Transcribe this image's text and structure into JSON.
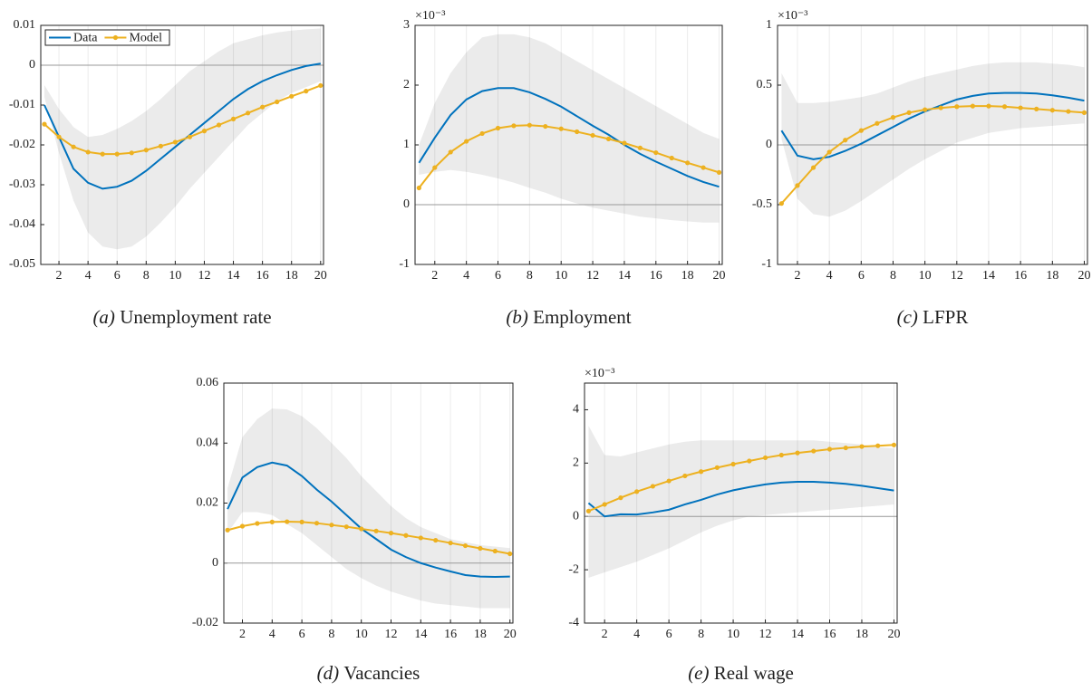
{
  "chart_data": [
    {
      "type": "line",
      "caption_tag": "(a)",
      "caption": "Unemployment rate",
      "x": [
        1,
        2,
        3,
        4,
        5,
        6,
        7,
        8,
        9,
        10,
        11,
        12,
        13,
        14,
        15,
        16,
        17,
        18,
        19,
        20
      ],
      "xlim": [
        0.75,
        20.2
      ],
      "xticks": [
        2,
        4,
        6,
        8,
        10,
        12,
        14,
        16,
        18,
        20
      ],
      "ylim": [
        -0.05,
        0.01
      ],
      "yticks": [
        -0.05,
        -0.04,
        -0.03,
        -0.02,
        -0.01,
        0,
        0.01
      ],
      "grid": true,
      "zero_line": true,
      "legend": "upper left",
      "band": {
        "color": "#ebebeb",
        "lower": [
          -0.008,
          -0.022,
          -0.034,
          -0.042,
          -0.0455,
          -0.0462,
          -0.0455,
          -0.043,
          -0.0395,
          -0.0355,
          -0.031,
          -0.027,
          -0.023,
          -0.019,
          -0.015,
          -0.012,
          -0.009,
          -0.007,
          -0.0055,
          -0.004
        ],
        "upper": [
          -0.005,
          -0.011,
          -0.0155,
          -0.018,
          -0.0175,
          -0.016,
          -0.014,
          -0.0115,
          -0.0085,
          -0.005,
          -0.0015,
          0.001,
          0.0035,
          0.0055,
          0.0065,
          0.0075,
          0.0082,
          0.0087,
          0.009,
          0.0092
        ]
      },
      "series": [
        {
          "name": "Data",
          "color": "#0072BD",
          "marker": false,
          "values": [
            -0.01,
            -0.018,
            -0.026,
            -0.0295,
            -0.031,
            -0.0305,
            -0.029,
            -0.0265,
            -0.0235,
            -0.0205,
            -0.0175,
            -0.0145,
            -0.0115,
            -0.0085,
            -0.006,
            -0.004,
            -0.0025,
            -0.0012,
            -0.0002,
            0.0004
          ]
        },
        {
          "name": "Model",
          "color": "#EDB120",
          "marker": true,
          "values": [
            -0.0148,
            -0.018,
            -0.0205,
            -0.0218,
            -0.0223,
            -0.0223,
            -0.022,
            -0.0213,
            -0.0203,
            -0.0193,
            -0.018,
            -0.0165,
            -0.015,
            -0.0135,
            -0.012,
            -0.0105,
            -0.0092,
            -0.0078,
            -0.0065,
            -0.0051
          ]
        }
      ]
    },
    {
      "type": "line",
      "caption_tag": "(b)",
      "caption": "Employment",
      "y_exponent_label": "×10⁻³",
      "x": [
        1,
        2,
        3,
        4,
        5,
        6,
        7,
        8,
        9,
        10,
        11,
        12,
        13,
        14,
        15,
        16,
        17,
        18,
        19,
        20
      ],
      "xlim": [
        0.75,
        20.2
      ],
      "xticks": [
        2,
        4,
        6,
        8,
        10,
        12,
        14,
        16,
        18,
        20
      ],
      "ylim": [
        -1,
        3
      ],
      "yticks": [
        -1,
        0,
        1,
        2,
        3
      ],
      "grid": true,
      "zero_line": true,
      "band": {
        "color": "#ebebeb",
        "lower": [
          0.5,
          0.55,
          0.58,
          0.55,
          0.5,
          0.44,
          0.37,
          0.28,
          0.2,
          0.1,
          0.02,
          -0.05,
          -0.1,
          -0.15,
          -0.2,
          -0.23,
          -0.26,
          -0.28,
          -0.3,
          -0.3
        ],
        "upper": [
          1.0,
          1.7,
          2.2,
          2.55,
          2.8,
          2.85,
          2.85,
          2.8,
          2.7,
          2.55,
          2.4,
          2.25,
          2.1,
          1.95,
          1.8,
          1.65,
          1.5,
          1.35,
          1.2,
          1.1
        ]
      },
      "series": [
        {
          "color": "#0072BD",
          "marker": false,
          "values": [
            0.7,
            1.12,
            1.5,
            1.76,
            1.9,
            1.95,
            1.95,
            1.88,
            1.77,
            1.64,
            1.48,
            1.32,
            1.17,
            1.0,
            0.85,
            0.72,
            0.6,
            0.48,
            0.38,
            0.3
          ]
        },
        {
          "color": "#EDB120",
          "marker": true,
          "values": [
            0.28,
            0.62,
            0.88,
            1.06,
            1.19,
            1.28,
            1.32,
            1.33,
            1.31,
            1.27,
            1.22,
            1.16,
            1.1,
            1.03,
            0.95,
            0.87,
            0.78,
            0.7,
            0.62,
            0.54
          ]
        }
      ]
    },
    {
      "type": "line",
      "caption_tag": "(c)",
      "caption": "LFPR",
      "y_exponent_label": "×10⁻³",
      "x": [
        1,
        2,
        3,
        4,
        5,
        6,
        7,
        8,
        9,
        10,
        11,
        12,
        13,
        14,
        15,
        16,
        17,
        18,
        19,
        20
      ],
      "xlim": [
        0.75,
        20.2
      ],
      "xticks": [
        2,
        4,
        6,
        8,
        10,
        12,
        14,
        16,
        18,
        20
      ],
      "ylim": [
        -1,
        1
      ],
      "yticks": [
        -1,
        -0.5,
        0,
        0.5,
        1
      ],
      "grid": true,
      "zero_line": true,
      "band": {
        "color": "#ebebeb",
        "lower": [
          0.05,
          -0.45,
          -0.58,
          -0.6,
          -0.55,
          -0.47,
          -0.38,
          -0.29,
          -0.2,
          -0.12,
          -0.05,
          0.02,
          0.06,
          0.1,
          0.12,
          0.14,
          0.15,
          0.16,
          0.17,
          0.18
        ],
        "upper": [
          0.6,
          0.35,
          0.35,
          0.36,
          0.38,
          0.4,
          0.43,
          0.48,
          0.53,
          0.57,
          0.6,
          0.63,
          0.66,
          0.68,
          0.69,
          0.69,
          0.69,
          0.68,
          0.67,
          0.65
        ]
      },
      "series": [
        {
          "color": "#0072BD",
          "marker": false,
          "values": [
            0.12,
            -0.09,
            -0.12,
            -0.1,
            -0.05,
            0.01,
            0.08,
            0.15,
            0.22,
            0.28,
            0.33,
            0.38,
            0.41,
            0.43,
            0.435,
            0.435,
            0.43,
            0.415,
            0.395,
            0.37
          ]
        },
        {
          "color": "#EDB120",
          "marker": true,
          "values": [
            -0.49,
            -0.34,
            -0.19,
            -0.06,
            0.04,
            0.12,
            0.18,
            0.23,
            0.27,
            0.295,
            0.31,
            0.32,
            0.325,
            0.325,
            0.32,
            0.31,
            0.3,
            0.29,
            0.28,
            0.27
          ]
        }
      ]
    },
    {
      "type": "line",
      "caption_tag": "(d)",
      "caption": "Vacancies",
      "x": [
        1,
        2,
        3,
        4,
        5,
        6,
        7,
        8,
        9,
        10,
        11,
        12,
        13,
        14,
        15,
        16,
        17,
        18,
        19,
        20
      ],
      "xlim": [
        0.75,
        20.2
      ],
      "xticks": [
        2,
        4,
        6,
        8,
        10,
        12,
        14,
        16,
        18,
        20
      ],
      "ylim": [
        -0.02,
        0.06
      ],
      "yticks": [
        -0.02,
        0,
        0.02,
        0.04,
        0.06
      ],
      "grid": true,
      "zero_line": true,
      "band": {
        "color": "#ebebeb",
        "lower": [
          0.01,
          0.017,
          0.017,
          0.016,
          0.013,
          0.01,
          0.006,
          0.002,
          -0.002,
          -0.005,
          -0.0075,
          -0.0095,
          -0.011,
          -0.0125,
          -0.0135,
          -0.014,
          -0.0145,
          -0.015,
          -0.015,
          -0.015
        ],
        "upper": [
          0.025,
          0.042,
          0.048,
          0.0515,
          0.0512,
          0.049,
          0.045,
          0.04,
          0.035,
          0.029,
          0.024,
          0.019,
          0.015,
          0.012,
          0.01,
          0.008,
          0.007,
          0.006,
          0.0055,
          0.005
        ]
      },
      "series": [
        {
          "color": "#0072BD",
          "marker": false,
          "values": [
            0.018,
            0.0285,
            0.032,
            0.0335,
            0.0325,
            0.029,
            0.0245,
            0.0205,
            0.016,
            0.0115,
            0.008,
            0.0045,
            0.002,
            0,
            -0.0015,
            -0.0028,
            -0.004,
            -0.0045,
            -0.0046,
            -0.0045
          ]
        },
        {
          "color": "#EDB120",
          "marker": true,
          "values": [
            0.011,
            0.0123,
            0.0132,
            0.0137,
            0.0138,
            0.0137,
            0.0133,
            0.0127,
            0.0121,
            0.0114,
            0.0107,
            0.01,
            0.0092,
            0.0084,
            0.0076,
            0.0067,
            0.0058,
            0.0049,
            0.004,
            0.0031
          ]
        }
      ]
    },
    {
      "type": "line",
      "caption_tag": "(e)",
      "caption": "Real wage",
      "y_exponent_label": "×10⁻³",
      "x": [
        1,
        2,
        3,
        4,
        5,
        6,
        7,
        8,
        9,
        10,
        11,
        12,
        13,
        14,
        15,
        16,
        17,
        18,
        19,
        20
      ],
      "xlim": [
        0.75,
        20.2
      ],
      "xticks": [
        2,
        4,
        6,
        8,
        10,
        12,
        14,
        16,
        18,
        20
      ],
      "ylim": [
        -4,
        5
      ],
      "yticks": [
        -4,
        -2,
        0,
        2,
        4
      ],
      "grid": true,
      "zero_line": true,
      "band": {
        "color": "#ebebeb",
        "lower": [
          -2.3,
          -2.1,
          -1.9,
          -1.7,
          -1.45,
          -1.2,
          -0.9,
          -0.6,
          -0.35,
          -0.15,
          0,
          0.05,
          0.1,
          0.15,
          0.2,
          0.25,
          0.3,
          0.35,
          0.4,
          0.45
        ],
        "upper": [
          3.4,
          2.3,
          2.25,
          2.4,
          2.55,
          2.7,
          2.8,
          2.85,
          2.85,
          2.85,
          2.85,
          2.85,
          2.85,
          2.85,
          2.85,
          2.8,
          2.75,
          2.7,
          2.6,
          2.55
        ]
      },
      "series": [
        {
          "color": "#0072BD",
          "marker": false,
          "values": [
            0.5,
            0.0,
            0.08,
            0.07,
            0.15,
            0.25,
            0.45,
            0.62,
            0.82,
            0.98,
            1.1,
            1.2,
            1.27,
            1.3,
            1.3,
            1.27,
            1.22,
            1.15,
            1.06,
            0.97
          ]
        },
        {
          "color": "#EDB120",
          "marker": true,
          "values": [
            0.2,
            0.45,
            0.7,
            0.93,
            1.13,
            1.33,
            1.52,
            1.68,
            1.83,
            1.96,
            2.08,
            2.2,
            2.3,
            2.38,
            2.45,
            2.52,
            2.57,
            2.62,
            2.65,
            2.68
          ]
        }
      ]
    }
  ]
}
